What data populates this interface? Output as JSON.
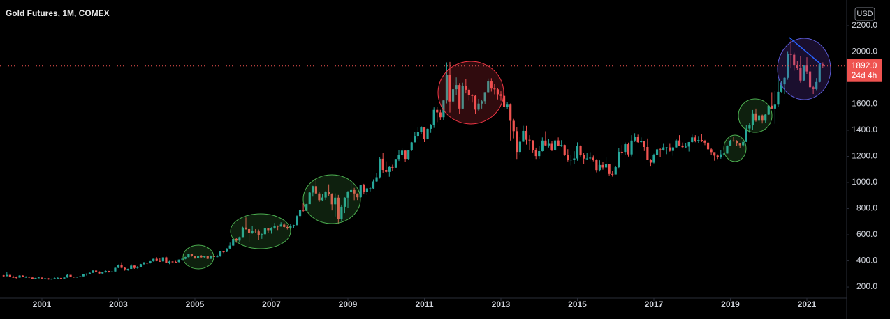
{
  "chart_data": {
    "type": "candlestick",
    "title": "Gold Futures, 1M, COMEX",
    "currency": "USD",
    "up_color": "#26a69a",
    "down_color": "#ef5350",
    "grid": false,
    "x": [
      "2000-01",
      "2000-02",
      "2000-03",
      "2000-04",
      "2000-05",
      "2000-06",
      "2000-07",
      "2000-08",
      "2000-09",
      "2000-10",
      "2000-11",
      "2000-12",
      "2001-01",
      "2001-02",
      "2001-03",
      "2001-04",
      "2001-05",
      "2001-06",
      "2001-07",
      "2001-08",
      "2001-09",
      "2001-10",
      "2001-11",
      "2001-12",
      "2002-01",
      "2002-02",
      "2002-03",
      "2002-04",
      "2002-05",
      "2002-06",
      "2002-07",
      "2002-08",
      "2002-09",
      "2002-10",
      "2002-11",
      "2002-12",
      "2003-01",
      "2003-02",
      "2003-03",
      "2003-04",
      "2003-05",
      "2003-06",
      "2003-07",
      "2003-08",
      "2003-09",
      "2003-10",
      "2003-11",
      "2003-12",
      "2004-01",
      "2004-02",
      "2004-03",
      "2004-04",
      "2004-05",
      "2004-06",
      "2004-07",
      "2004-08",
      "2004-09",
      "2004-10",
      "2004-11",
      "2004-12",
      "2005-01",
      "2005-02",
      "2005-03",
      "2005-04",
      "2005-05",
      "2005-06",
      "2005-07",
      "2005-08",
      "2005-09",
      "2005-10",
      "2005-11",
      "2005-12",
      "2006-01",
      "2006-02",
      "2006-03",
      "2006-04",
      "2006-05",
      "2006-06",
      "2006-07",
      "2006-08",
      "2006-09",
      "2006-10",
      "2006-11",
      "2006-12",
      "2007-01",
      "2007-02",
      "2007-03",
      "2007-04",
      "2007-05",
      "2007-06",
      "2007-07",
      "2007-08",
      "2007-09",
      "2007-10",
      "2007-11",
      "2007-12",
      "2008-01",
      "2008-02",
      "2008-03",
      "2008-04",
      "2008-05",
      "2008-06",
      "2008-07",
      "2008-08",
      "2008-09",
      "2008-10",
      "2008-11",
      "2008-12",
      "2009-01",
      "2009-02",
      "2009-03",
      "2009-04",
      "2009-05",
      "2009-06",
      "2009-07",
      "2009-08",
      "2009-09",
      "2009-10",
      "2009-11",
      "2009-12",
      "2010-01",
      "2010-02",
      "2010-03",
      "2010-04",
      "2010-05",
      "2010-06",
      "2010-07",
      "2010-08",
      "2010-09",
      "2010-10",
      "2010-11",
      "2010-12",
      "2011-01",
      "2011-02",
      "2011-03",
      "2011-04",
      "2011-05",
      "2011-06",
      "2011-07",
      "2011-08",
      "2011-09",
      "2011-10",
      "2011-11",
      "2011-12",
      "2012-01",
      "2012-02",
      "2012-03",
      "2012-04",
      "2012-05",
      "2012-06",
      "2012-07",
      "2012-08",
      "2012-09",
      "2012-10",
      "2012-11",
      "2012-12",
      "2013-01",
      "2013-02",
      "2013-03",
      "2013-04",
      "2013-05",
      "2013-06",
      "2013-07",
      "2013-08",
      "2013-09",
      "2013-10",
      "2013-11",
      "2013-12",
      "2014-01",
      "2014-02",
      "2014-03",
      "2014-04",
      "2014-05",
      "2014-06",
      "2014-07",
      "2014-08",
      "2014-09",
      "2014-10",
      "2014-11",
      "2014-12",
      "2015-01",
      "2015-02",
      "2015-03",
      "2015-04",
      "2015-05",
      "2015-06",
      "2015-07",
      "2015-08",
      "2015-09",
      "2015-10",
      "2015-11",
      "2015-12",
      "2016-01",
      "2016-02",
      "2016-03",
      "2016-04",
      "2016-05",
      "2016-06",
      "2016-07",
      "2016-08",
      "2016-09",
      "2016-10",
      "2016-11",
      "2016-12",
      "2017-01",
      "2017-02",
      "2017-03",
      "2017-04",
      "2017-05",
      "2017-06",
      "2017-07",
      "2017-08",
      "2017-09",
      "2017-10",
      "2017-11",
      "2017-12",
      "2018-01",
      "2018-02",
      "2018-03",
      "2018-04",
      "2018-05",
      "2018-06",
      "2018-07",
      "2018-08",
      "2018-09",
      "2018-10",
      "2018-11",
      "2018-12",
      "2019-01",
      "2019-02",
      "2019-03",
      "2019-04",
      "2019-05",
      "2019-06",
      "2019-07",
      "2019-08",
      "2019-09",
      "2019-10",
      "2019-11",
      "2019-12",
      "2020-01",
      "2020-02",
      "2020-03",
      "2020-04",
      "2020-05",
      "2020-06",
      "2020-07",
      "2020-08",
      "2020-09",
      "2020-10",
      "2020-11",
      "2020-12",
      "2021-01",
      "2021-02",
      "2021-03",
      "2021-04",
      "2021-05",
      "2021-06"
    ],
    "open": [
      289,
      283,
      293,
      277,
      274,
      272,
      288,
      276,
      278,
      273,
      264,
      270,
      273,
      265,
      267,
      258,
      264,
      268,
      270,
      265,
      273,
      293,
      279,
      275,
      279,
      282,
      297,
      302,
      309,
      326,
      318,
      304,
      312,
      323,
      317,
      319,
      347,
      367,
      347,
      336,
      339,
      364,
      346,
      354,
      375,
      385,
      384,
      397,
      416,
      399,
      396,
      427,
      387,
      395,
      392,
      391,
      410,
      416,
      429,
      453,
      438,
      423,
      435,
      428,
      435,
      416,
      436,
      430,
      434,
      472,
      470,
      495,
      517,
      569,
      556,
      582,
      655,
      643,
      614,
      632,
      626,
      599,
      604,
      648,
      635,
      652,
      669,
      662,
      678,
      659,
      650,
      666,
      673,
      743,
      789,
      783,
      834,
      923,
      972,
      916,
      865,
      885,
      928,
      913,
      833,
      884,
      718,
      814,
      884,
      928,
      942,
      916,
      887,
      979,
      927,
      955,
      955,
      1008,
      1040,
      1182,
      1096,
      1081,
      1118,
      1113,
      1180,
      1212,
      1244,
      1181,
      1248,
      1307,
      1357,
      1386,
      1421,
      1332,
      1411,
      1439,
      1556,
      1536,
      1500,
      1628,
      1826,
      1620,
      1714,
      1746,
      1566,
      1738,
      1710,
      1668,
      1663,
      1558,
      1604,
      1622,
      1691,
      1773,
      1719,
      1713,
      1675,
      1663,
      1578,
      1596,
      1472,
      1393,
      1234,
      1312,
      1395,
      1327,
      1323,
      1250,
      1202,
      1240,
      1321,
      1284,
      1296,
      1246,
      1322,
      1282,
      1287,
      1210,
      1171,
      1175,
      1184,
      1278,
      1213,
      1183,
      1184,
      1190,
      1172,
      1095,
      1134,
      1115,
      1142,
      1065,
      1061,
      1117,
      1235,
      1234,
      1293,
      1215,
      1321,
      1350,
      1309,
      1316,
      1272,
      1173,
      1152,
      1211,
      1254,
      1249,
      1269,
      1269,
      1242,
      1269,
      1322,
      1283,
      1271,
      1275,
      1309,
      1345,
      1318,
      1325,
      1316,
      1305,
      1254,
      1233,
      1206,
      1196,
      1215,
      1222,
      1282,
      1321,
      1316,
      1298,
      1285,
      1311,
      1413,
      1437,
      1529,
      1473,
      1514,
      1473,
      1520,
      1588,
      1566,
      1596,
      1694,
      1751,
      1801,
      1986,
      1978,
      1895,
      1879,
      1780,
      1895,
      1850,
      1729,
      1715,
      1769,
      1905
    ],
    "high": [
      292,
      316,
      295,
      287,
      281,
      291,
      290,
      283,
      281,
      274,
      271,
      275,
      273,
      268,
      270,
      265,
      273,
      278,
      271,
      275,
      298,
      293,
      279,
      280,
      285,
      301,
      304,
      311,
      328,
      330,
      321,
      316,
      327,
      324,
      322,
      349,
      372,
      389,
      352,
      341,
      376,
      365,
      360,
      377,
      392,
      387,
      399,
      417,
      428,
      421,
      429,
      432,
      400,
      398,
      400,
      411,
      419,
      432,
      456,
      456,
      430,
      438,
      445,
      438,
      436,
      441,
      436,
      447,
      474,
      476,
      497,
      540,
      573,
      576,
      586,
      661,
      732,
      650,
      666,
      643,
      640,
      609,
      654,
      651,
      657,
      690,
      671,
      695,
      691,
      674,
      684,
      676,
      748,
      795,
      845,
      836,
      930,
      975,
      1033,
      931,
      913,
      934,
      986,
      918,
      917,
      905,
      830,
      887,
      935,
      1007,
      959,
      917,
      981,
      990,
      960,
      962,
      1024,
      1070,
      1193,
      1226,
      1162,
      1126,
      1136,
      1180,
      1249,
      1266,
      1245,
      1250,
      1310,
      1388,
      1425,
      1432,
      1424,
      1414,
      1447,
      1575,
      1577,
      1556,
      1632,
      1920,
      1923,
      1764,
      1804,
      1761,
      1764,
      1792,
      1720,
      1676,
      1667,
      1640,
      1631,
      1692,
      1796,
      1798,
      1755,
      1724,
      1698,
      1684,
      1617,
      1605,
      1487,
      1424,
      1348,
      1434,
      1433,
      1362,
      1324,
      1267,
      1280,
      1345,
      1392,
      1331,
      1315,
      1330,
      1345,
      1324,
      1290,
      1255,
      1208,
      1239,
      1307,
      1285,
      1224,
      1225,
      1232,
      1206,
      1179,
      1170,
      1157,
      1192,
      1142,
      1088,
      1128,
      1262,
      1287,
      1306,
      1305,
      1362,
      1377,
      1366,
      1345,
      1317,
      1337,
      1180,
      1220,
      1264,
      1262,
      1296,
      1272,
      1296,
      1275,
      1331,
      1362,
      1306,
      1300,
      1310,
      1366,
      1362,
      1356,
      1369,
      1326,
      1309,
      1266,
      1217,
      1215,
      1246,
      1241,
      1286,
      1326,
      1347,
      1324,
      1301,
      1313,
      1442,
      1453,
      1555,
      1566,
      1518,
      1520,
      1523,
      1592,
      1691,
      1704,
      1788,
      1775,
      1805,
      2005,
      2089,
      1994,
      1933,
      1966,
      1900,
      1959,
      1875,
      1742,
      1799,
      1916,
      1920
    ],
    "low": [
      280,
      282,
      275,
      270,
      266,
      271,
      275,
      270,
      269,
      263,
      263,
      267,
      263,
      256,
      256,
      257,
      262,
      265,
      264,
      264,
      271,
      278,
      272,
      271,
      277,
      281,
      288,
      298,
      307,
      313,
      301,
      302,
      310,
      311,
      313,
      317,
      345,
      343,
      325,
      324,
      338,
      339,
      340,
      354,
      370,
      368,
      380,
      394,
      397,
      392,
      394,
      384,
      375,
      385,
      386,
      388,
      398,
      412,
      426,
      433,
      416,
      412,
      423,
      423,
      415,
      415,
      418,
      428,
      433,
      460,
      467,
      493,
      514,
      539,
      540,
      582,
      638,
      543,
      607,
      612,
      560,
      569,
      603,
      612,
      608,
      645,
      636,
      662,
      651,
      640,
      647,
      650,
      672,
      725,
      772,
      782,
      846,
      892,
      917,
      851,
      857,
      867,
      899,
      786,
      740,
      681,
      705,
      765,
      805,
      920,
      865,
      866,
      884,
      909,
      905,
      932,
      950,
      1002,
      1030,
      1075,
      1074,
      1044,
      1089,
      1114,
      1165,
      1196,
      1157,
      1176,
      1241,
      1313,
      1330,
      1373,
      1309,
      1330,
      1380,
      1418,
      1462,
      1478,
      1478,
      1605,
      1535,
      1603,
      1671,
      1523,
      1562,
      1682,
      1627,
      1612,
      1527,
      1546,
      1566,
      1598,
      1688,
      1696,
      1675,
      1636,
      1626,
      1555,
      1565,
      1321,
      1338,
      1180,
      1208,
      1310,
      1290,
      1251,
      1230,
      1180,
      1182,
      1237,
      1280,
      1268,
      1240,
      1241,
      1281,
      1273,
      1204,
      1161,
      1131,
      1142,
      1167,
      1199,
      1142,
      1176,
      1170,
      1162,
      1077,
      1084,
      1098,
      1112,
      1054,
      1045,
      1061,
      1111,
      1208,
      1212,
      1199,
      1200,
      1310,
      1302,
      1301,
      1241,
      1171,
      1122,
      1146,
      1210,
      1195,
      1244,
      1217,
      1236,
      1205,
      1265,
      1278,
      1261,
      1264,
      1237,
      1303,
      1308,
      1302,
      1310,
      1286,
      1247,
      1211,
      1167,
      1180,
      1182,
      1196,
      1220,
      1277,
      1312,
      1281,
      1266,
      1273,
      1309,
      1381,
      1400,
      1465,
      1459,
      1452,
      1457,
      1518,
      1564,
      1450,
      1576,
      1690,
      1677,
      1786,
      1874,
      1856,
      1861,
      1764,
      1777,
      1832,
      1717,
      1677,
      1707,
      1766,
      1877
    ],
    "close": [
      283,
      293,
      277,
      274,
      272,
      288,
      276,
      278,
      273,
      264,
      270,
      273,
      265,
      267,
      258,
      264,
      268,
      270,
      265,
      273,
      293,
      279,
      275,
      279,
      282,
      297,
      302,
      309,
      326,
      318,
      304,
      312,
      323,
      317,
      319,
      347,
      367,
      347,
      336,
      339,
      364,
      346,
      354,
      375,
      385,
      384,
      397,
      416,
      399,
      396,
      427,
      387,
      395,
      392,
      391,
      410,
      416,
      429,
      453,
      438,
      423,
      435,
      428,
      435,
      416,
      436,
      430,
      434,
      472,
      470,
      495,
      517,
      569,
      556,
      582,
      655,
      643,
      614,
      632,
      626,
      599,
      604,
      648,
      635,
      652,
      669,
      662,
      678,
      659,
      650,
      666,
      673,
      743,
      789,
      783,
      834,
      923,
      972,
      916,
      865,
      885,
      928,
      913,
      833,
      884,
      718,
      814,
      884,
      928,
      942,
      916,
      887,
      979,
      927,
      955,
      955,
      1008,
      1040,
      1182,
      1096,
      1081,
      1118,
      1113,
      1180,
      1212,
      1244,
      1181,
      1248,
      1307,
      1357,
      1386,
      1421,
      1332,
      1411,
      1439,
      1556,
      1536,
      1500,
      1628,
      1826,
      1620,
      1714,
      1746,
      1566,
      1738,
      1710,
      1668,
      1663,
      1558,
      1604,
      1622,
      1691,
      1773,
      1719,
      1713,
      1675,
      1663,
      1578,
      1596,
      1472,
      1393,
      1234,
      1312,
      1395,
      1327,
      1323,
      1250,
      1202,
      1240,
      1321,
      1284,
      1296,
      1246,
      1322,
      1282,
      1287,
      1210,
      1171,
      1175,
      1184,
      1278,
      1213,
      1183,
      1184,
      1190,
      1172,
      1095,
      1134,
      1115,
      1142,
      1065,
      1061,
      1117,
      1235,
      1234,
      1293,
      1215,
      1321,
      1350,
      1309,
      1316,
      1272,
      1173,
      1152,
      1211,
      1254,
      1249,
      1269,
      1269,
      1242,
      1269,
      1322,
      1283,
      1271,
      1275,
      1309,
      1345,
      1318,
      1325,
      1316,
      1305,
      1254,
      1233,
      1206,
      1196,
      1215,
      1222,
      1282,
      1321,
      1316,
      1298,
      1285,
      1311,
      1413,
      1437,
      1529,
      1473,
      1514,
      1473,
      1520,
      1588,
      1566,
      1596,
      1694,
      1751,
      1801,
      1986,
      1978,
      1895,
      1879,
      1780,
      1895,
      1850,
      1729,
      1715,
      1769,
      1905,
      1892
    ],
    "ylim": [
      115,
      2397
    ],
    "yticks": [
      {
        "value": 200,
        "label": "200.0"
      },
      {
        "value": 400,
        "label": "400.0"
      },
      {
        "value": 600,
        "label": "600.0"
      },
      {
        "value": 800,
        "label": "800.0"
      },
      {
        "value": 1000,
        "label": "1000.0"
      },
      {
        "value": 1200,
        "label": "1200.0"
      },
      {
        "value": 1400,
        "label": "1400.0"
      },
      {
        "value": 1600,
        "label": "1600.0"
      },
      {
        "value": 1800,
        "label": "1800.0"
      },
      {
        "value": 2000,
        "label": "2000.0"
      },
      {
        "value": 2200,
        "label": "2200.0"
      }
    ],
    "xticks": [
      {
        "value": "2001-01",
        "label": "2001"
      },
      {
        "value": "2003-01",
        "label": "2003"
      },
      {
        "value": "2005-01",
        "label": "2005"
      },
      {
        "value": "2007-01",
        "label": "2007"
      },
      {
        "value": "2009-01",
        "label": "2009"
      },
      {
        "value": "2011-01",
        "label": "2011"
      },
      {
        "value": "2013-01",
        "label": "2013"
      },
      {
        "value": "2015-01",
        "label": "2015"
      },
      {
        "value": "2017-01",
        "label": "2017"
      },
      {
        "value": "2019-01",
        "label": "2019"
      },
      {
        "value": "2021-01",
        "label": "2021"
      }
    ],
    "last_price": {
      "value": 1892,
      "label": "1892.0"
    },
    "countdown": "24d 4h"
  }
}
